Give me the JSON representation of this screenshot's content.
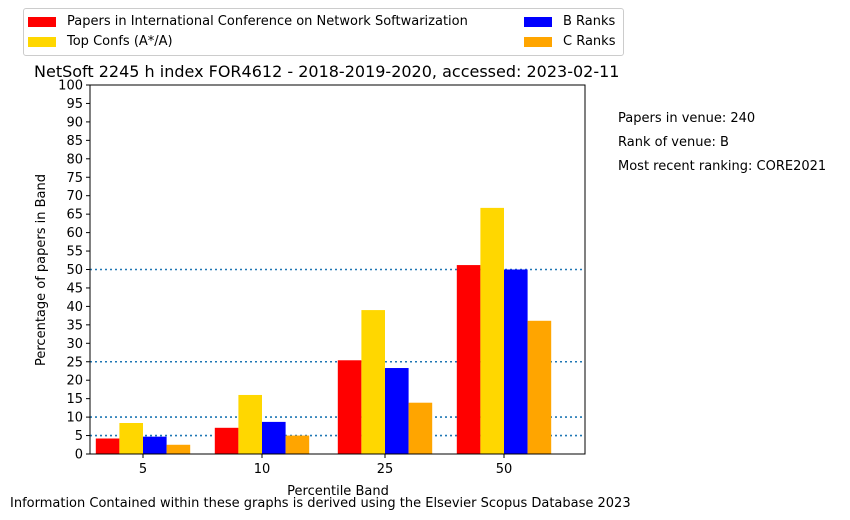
{
  "chart_data": {
    "type": "bar",
    "title": "NetSoft 2245 h index FOR4612 - 2018-2019-2020, accessed: 2023-02-11",
    "xlabel": "Percentile Band",
    "ylabel": "Percentage of papers in Band",
    "categories": [
      "5",
      "10",
      "25",
      "50"
    ],
    "ylim": [
      0,
      100
    ],
    "yticks": [
      0,
      5,
      10,
      15,
      20,
      25,
      30,
      35,
      40,
      45,
      50,
      55,
      60,
      65,
      70,
      75,
      80,
      85,
      90,
      95,
      100
    ],
    "reference_lines": [
      5,
      10,
      25,
      50
    ],
    "reference_line_color": "#1f77b4",
    "grid": false,
    "legend_position": "top-left, above plot",
    "series": [
      {
        "name": "Papers in International Conference on Network Softwarization",
        "color": "#ff0000",
        "values": [
          4.2,
          7.1,
          25.4,
          51.2
        ]
      },
      {
        "name": "Top Confs (A*/A)",
        "color": "#ffd700",
        "values": [
          8.4,
          16.0,
          39.0,
          66.7
        ]
      },
      {
        "name": "B Ranks",
        "color": "#0000ff",
        "values": [
          4.7,
          8.7,
          23.3,
          50.0
        ]
      },
      {
        "name": "C Ranks",
        "color": "#ffa500",
        "values": [
          2.5,
          5.0,
          13.9,
          36.1
        ]
      }
    ]
  },
  "side_info": {
    "papers": "Papers in venue: 240",
    "rank": "Rank of venue: B",
    "ranking": "Most recent ranking: CORE2021"
  },
  "footer": "Information Contained within these graphs is derived using the Elsevier Scopus Database 2023"
}
